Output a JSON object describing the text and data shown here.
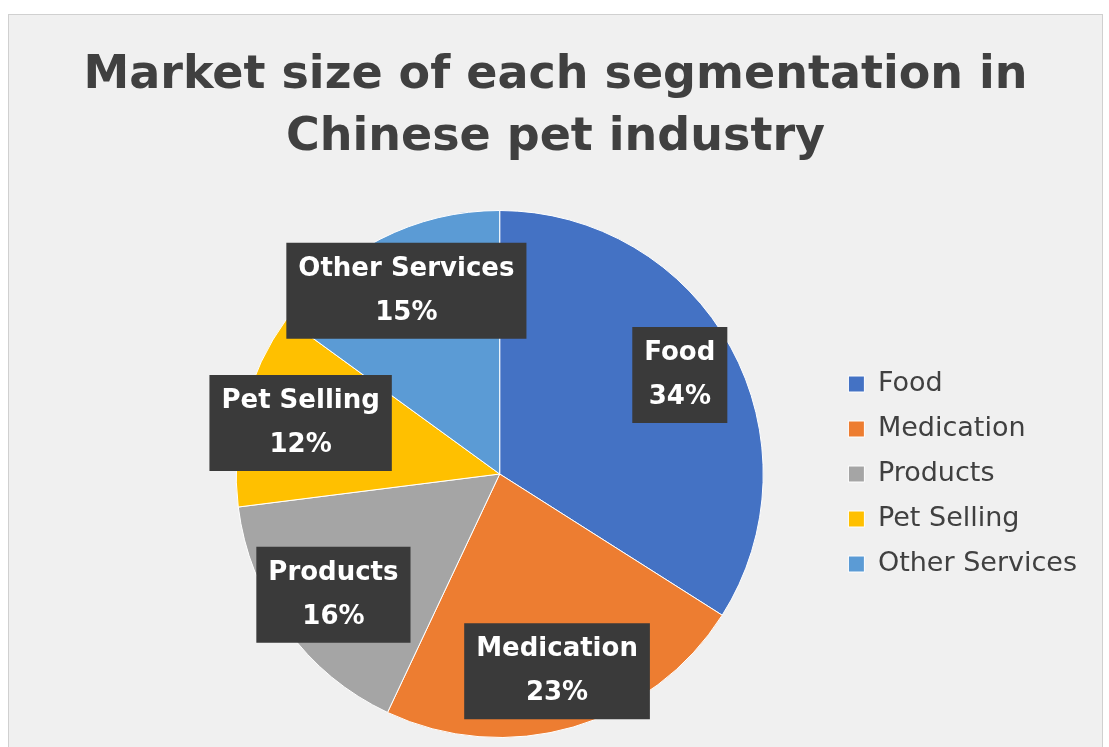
{
  "chart_data": {
    "type": "pie",
    "title": "Market size of each segmentation in Chinese pet industry",
    "categories": [
      "Food",
      "Medication",
      "Products",
      "Pet Selling",
      "Other Services"
    ],
    "values": [
      34,
      23,
      16,
      12,
      15
    ],
    "value_labels": [
      "34%",
      "23%",
      "16%",
      "12%",
      "15%"
    ],
    "colors": [
      "#4472c4",
      "#ed7d31",
      "#a5a5a5",
      "#ffc000",
      "#5b9bd5"
    ],
    "legend": "right"
  }
}
